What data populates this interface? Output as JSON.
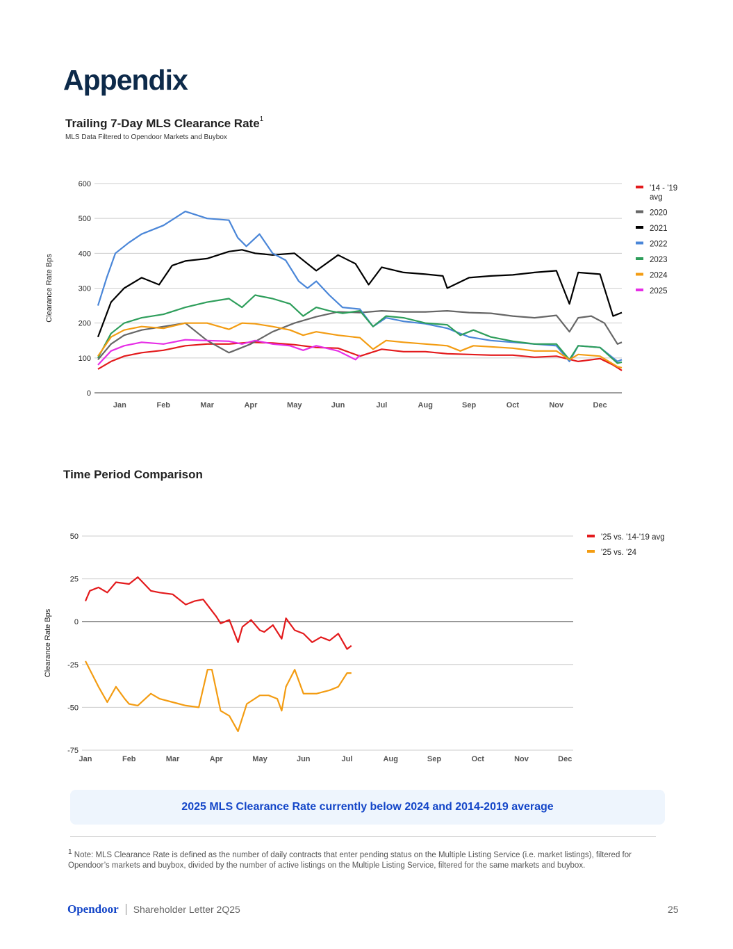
{
  "page": {
    "title": "Appendix",
    "callout": "2025 MLS Clearance Rate currently below 2024 and 2014-2019 average",
    "footnote_marker": "1",
    "footnote": "Note: MLS Clearance Rate is defined as the number of daily contracts that enter pending status on the Multiple Listing Service (i.e. market listings), filtered for Opendoor’s markets and buybox, divided by the number of active listings on the Multiple Listing Service, filtered for the same markets and buybox.",
    "footer_logo": "Opendoor",
    "footer_text": "Shareholder Letter 2Q25",
    "page_number": "25"
  },
  "chart_data": [
    {
      "type": "line",
      "title": "Trailing 7-Day MLS Clearance Rate",
      "title_superscript": "1",
      "subtitle": "MLS Data Filtered to Opendoor Markets and Buybox",
      "xlabel": "",
      "ylabel": "Clearance Rate Bps",
      "ylim": [
        0,
        600
      ],
      "yticks": [
        0,
        100,
        200,
        300,
        400,
        500,
        600
      ],
      "xticks": [
        "Jan",
        "Feb",
        "Mar",
        "Apr",
        "May",
        "Jun",
        "Jul",
        "Aug",
        "Sep",
        "Oct",
        "Nov",
        "Dec"
      ],
      "x_unit": "month (0 = Jan 1, 12 = Dec 31)",
      "grid": true,
      "legend": "right",
      "series": [
        {
          "name": "'14 - '19 avg",
          "color": "#e31a1c",
          "x": [
            0,
            0.3,
            0.6,
            1,
            1.5,
            2,
            2.5,
            3,
            3.5,
            4,
            4.5,
            5,
            5.5,
            6,
            6.5,
            7,
            7.5,
            8,
            8.5,
            9,
            9.5,
            10,
            10.5,
            11,
            11.5,
            11.8,
            12
          ],
          "values": [
            68,
            90,
            105,
            115,
            122,
            135,
            140,
            140,
            145,
            143,
            138,
            130,
            128,
            105,
            125,
            118,
            118,
            112,
            110,
            108,
            108,
            102,
            105,
            90,
            98,
            80,
            64
          ]
        },
        {
          "name": "2020",
          "color": "#666666",
          "x": [
            0,
            0.3,
            0.6,
            1,
            1.5,
            2,
            2.5,
            3,
            3.5,
            4,
            4.5,
            5,
            5.5,
            6,
            6.5,
            7,
            7.5,
            8,
            8.5,
            9,
            9.5,
            10,
            10.5,
            10.8,
            11,
            11.3,
            11.6,
            11.9,
            12
          ],
          "values": [
            95,
            140,
            165,
            180,
            190,
            200,
            150,
            115,
            140,
            175,
            200,
            218,
            232,
            230,
            235,
            232,
            232,
            235,
            230,
            228,
            220,
            215,
            222,
            175,
            215,
            220,
            200,
            140,
            145
          ]
        },
        {
          "name": "2021",
          "color": "#000000",
          "x": [
            0,
            0.3,
            0.6,
            1,
            1.4,
            1.7,
            2,
            2.5,
            3,
            3.3,
            3.6,
            4,
            4.5,
            5,
            5.5,
            5.9,
            6.2,
            6.5,
            7,
            7.5,
            7.9,
            8,
            8.5,
            9,
            9.5,
            10,
            10.5,
            10.8,
            11,
            11.5,
            11.8,
            12
          ],
          "values": [
            160,
            260,
            300,
            330,
            310,
            365,
            378,
            385,
            405,
            410,
            400,
            395,
            400,
            350,
            395,
            370,
            310,
            360,
            345,
            340,
            335,
            300,
            330,
            335,
            338,
            345,
            350,
            255,
            345,
            340,
            220,
            230
          ]
        },
        {
          "name": "2022",
          "color": "#4a86d8",
          "x": [
            0,
            0.2,
            0.4,
            0.7,
            1,
            1.5,
            2,
            2.5,
            3,
            3.2,
            3.4,
            3.7,
            4,
            4.3,
            4.6,
            4.8,
            5,
            5.3,
            5.6,
            6,
            6.3,
            6.6,
            7,
            7.5,
            8,
            8.5,
            9,
            9.5,
            10,
            10.5,
            10.8,
            11,
            11.5,
            11.9,
            12
          ],
          "values": [
            250,
            330,
            400,
            430,
            455,
            480,
            520,
            500,
            495,
            445,
            420,
            455,
            400,
            380,
            320,
            300,
            320,
            280,
            245,
            240,
            190,
            215,
            205,
            198,
            185,
            160,
            150,
            145,
            140,
            135,
            90,
            135,
            130,
            90,
            95
          ]
        },
        {
          "name": "2023",
          "color": "#2e9e5b",
          "x": [
            0,
            0.3,
            0.6,
            1,
            1.5,
            2,
            2.5,
            3,
            3.3,
            3.6,
            4,
            4.4,
            4.7,
            5,
            5.3,
            5.6,
            6,
            6.3,
            6.6,
            7,
            7.5,
            8,
            8.3,
            8.6,
            9,
            9.5,
            10,
            10.5,
            10.8,
            11,
            11.5,
            11.9,
            12
          ],
          "values": [
            100,
            170,
            200,
            215,
            225,
            245,
            260,
            270,
            245,
            280,
            270,
            255,
            220,
            245,
            235,
            228,
            235,
            190,
            220,
            215,
            200,
            195,
            165,
            180,
            160,
            148,
            140,
            140,
            95,
            135,
            130,
            85,
            88
          ]
        },
        {
          "name": "2024",
          "color": "#f39c12",
          "x": [
            0,
            0.3,
            0.6,
            1,
            1.5,
            2,
            2.5,
            3,
            3.3,
            3.6,
            4,
            4.4,
            4.7,
            5,
            5.5,
            6,
            6.3,
            6.6,
            7,
            7.5,
            8,
            8.3,
            8.6,
            9,
            9.5,
            10,
            10.5,
            10.8,
            11,
            11.5,
            11.9,
            12
          ],
          "values": [
            105,
            160,
            180,
            190,
            185,
            200,
            200,
            182,
            200,
            198,
            190,
            180,
            165,
            175,
            165,
            158,
            125,
            150,
            145,
            140,
            135,
            120,
            135,
            132,
            128,
            120,
            120,
            95,
            110,
            105,
            75,
            72
          ]
        },
        {
          "name": "2025",
          "color": "#e62ee6",
          "x": [
            0,
            0.3,
            0.6,
            1,
            1.5,
            2,
            2.5,
            3,
            3.3,
            3.6,
            4,
            4.4,
            4.7,
            5,
            5.5,
            5.9,
            6
          ],
          "values": [
            80,
            120,
            135,
            145,
            140,
            152,
            150,
            148,
            140,
            150,
            140,
            135,
            122,
            135,
            120,
            95,
            108
          ]
        }
      ]
    },
    {
      "type": "line",
      "title": "Time Period Comparison",
      "xlabel": "",
      "ylabel": "Clearance Rate Bps",
      "ylim": [
        -75,
        50
      ],
      "yticks": [
        -75,
        -50,
        -25,
        0,
        25,
        50
      ],
      "xticks": [
        "Jan",
        "Feb",
        "Mar",
        "Apr",
        "May",
        "Jun",
        "Jul",
        "Aug",
        "Sep",
        "Oct",
        "Nov",
        "Dec"
      ],
      "x_unit": "month (0 = Jan 1)",
      "grid": true,
      "legend": "top-right",
      "series": [
        {
          "name": "'25 vs. '14-'19 avg",
          "color": "#e31a1c",
          "x": [
            0,
            0.1,
            0.3,
            0.5,
            0.7,
            1,
            1.2,
            1.5,
            1.7,
            2,
            2.3,
            2.5,
            2.7,
            3,
            3.1,
            3.3,
            3.5,
            3.6,
            3.8,
            4,
            4.1,
            4.3,
            4.5,
            4.6,
            4.8,
            5,
            5.2,
            5.4,
            5.6,
            5.8,
            6,
            6.1
          ],
          "values": [
            12,
            18,
            20,
            17,
            23,
            22,
            26,
            18,
            17,
            16,
            10,
            12,
            13,
            3,
            -1,
            1,
            -12,
            -3,
            1,
            -5,
            -6,
            -2,
            -10,
            2,
            -5,
            -7,
            -12,
            -9,
            -11,
            -7,
            -16,
            -14
          ]
        },
        {
          "name": "'25 vs. '24",
          "color": "#f39c12",
          "x": [
            0,
            0.1,
            0.3,
            0.5,
            0.7,
            0.9,
            1,
            1.2,
            1.5,
            1.7,
            2,
            2.3,
            2.6,
            2.8,
            2.9,
            3.1,
            3.3,
            3.5,
            3.7,
            4,
            4.2,
            4.4,
            4.5,
            4.6,
            4.8,
            5,
            5.3,
            5.6,
            5.8,
            6,
            6.1
          ],
          "values": [
            -23,
            -28,
            -38,
            -47,
            -38,
            -45,
            -48,
            -49,
            -42,
            -45,
            -47,
            -49,
            -50,
            -28,
            -28,
            -52,
            -55,
            -64,
            -48,
            -43,
            -43,
            -45,
            -52,
            -38,
            -28,
            -42,
            -42,
            -40,
            -38,
            -30,
            -30
          ]
        }
      ]
    }
  ]
}
